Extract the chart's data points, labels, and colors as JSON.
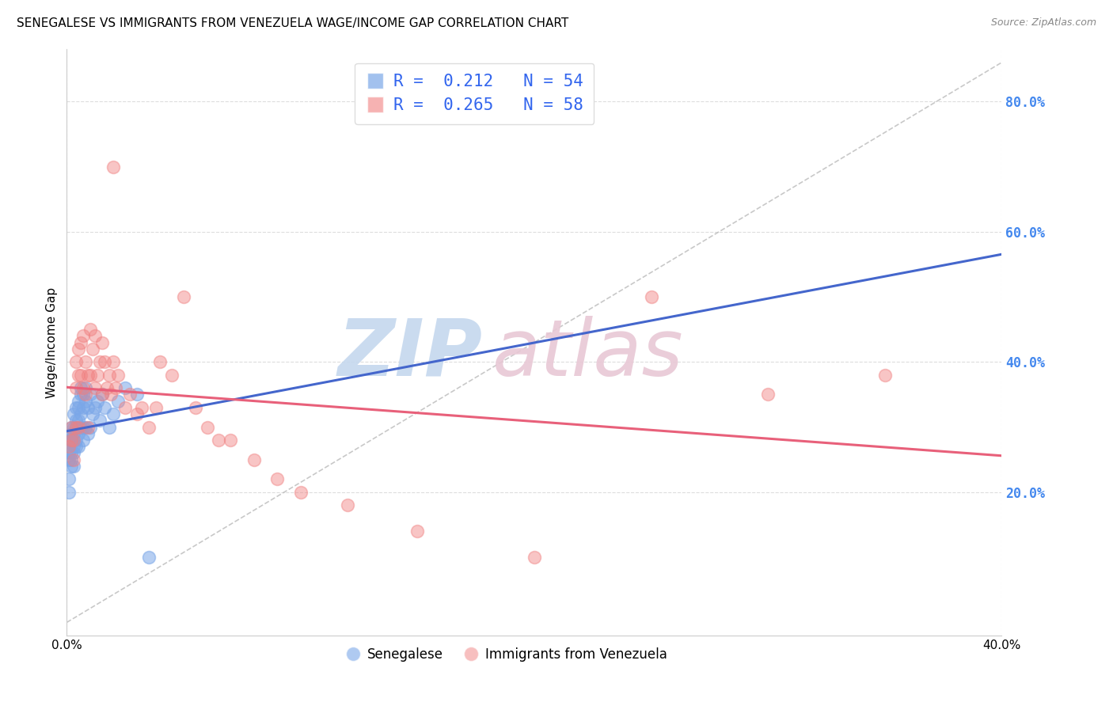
{
  "title": "SENEGALESE VS IMMIGRANTS FROM VENEZUELA WAGE/INCOME GAP CORRELATION CHART",
  "source": "Source: ZipAtlas.com",
  "ylabel": "Wage/Income Gap",
  "xlim": [
    0.0,
    0.4
  ],
  "ylim": [
    -0.02,
    0.88
  ],
  "xtick_positions": [
    0.0,
    0.4
  ],
  "xtick_labels": [
    "0.0%",
    "40.0%"
  ],
  "yticks_right": [
    0.2,
    0.4,
    0.6,
    0.8
  ],
  "ytick_labels_right": [
    "20.0%",
    "40.0%",
    "60.0%",
    "80.0%"
  ],
  "blue_color": "#7BA7E8",
  "pink_color": "#F08080",
  "blue_trend_color": "#4466CC",
  "pink_trend_color": "#E8607A",
  "diag_color": "#BBBBBB",
  "grid_color": "#DDDDDD",
  "blue_R": "0.212",
  "blue_N": "54",
  "pink_R": "0.265",
  "pink_N": "58",
  "title_fontsize": 11,
  "source_fontsize": 9,
  "tick_fontsize": 11,
  "ylabel_fontsize": 11,
  "legend_fontsize": 14,
  "watermark_zip_color": "#C5D8EE",
  "watermark_atlas_color": "#E8C8D5",
  "blue_scatter_x": [
    0.001,
    0.001,
    0.001,
    0.001,
    0.001,
    0.002,
    0.002,
    0.002,
    0.002,
    0.002,
    0.002,
    0.003,
    0.003,
    0.003,
    0.003,
    0.003,
    0.003,
    0.004,
    0.004,
    0.004,
    0.004,
    0.004,
    0.005,
    0.005,
    0.005,
    0.005,
    0.005,
    0.006,
    0.006,
    0.006,
    0.006,
    0.007,
    0.007,
    0.007,
    0.007,
    0.008,
    0.008,
    0.008,
    0.009,
    0.009,
    0.01,
    0.01,
    0.011,
    0.012,
    0.013,
    0.014,
    0.015,
    0.016,
    0.018,
    0.02,
    0.022,
    0.025,
    0.03,
    0.035
  ],
  "blue_scatter_y": [
    0.28,
    0.26,
    0.25,
    0.22,
    0.2,
    0.3,
    0.29,
    0.28,
    0.26,
    0.25,
    0.24,
    0.32,
    0.3,
    0.29,
    0.27,
    0.26,
    0.24,
    0.33,
    0.31,
    0.3,
    0.28,
    0.27,
    0.34,
    0.33,
    0.31,
    0.29,
    0.27,
    0.36,
    0.35,
    0.32,
    0.3,
    0.35,
    0.33,
    0.3,
    0.28,
    0.36,
    0.34,
    0.3,
    0.33,
    0.29,
    0.35,
    0.3,
    0.32,
    0.33,
    0.34,
    0.31,
    0.35,
    0.33,
    0.3,
    0.32,
    0.34,
    0.36,
    0.35,
    0.1
  ],
  "pink_scatter_x": [
    0.001,
    0.002,
    0.002,
    0.003,
    0.003,
    0.004,
    0.004,
    0.004,
    0.005,
    0.005,
    0.005,
    0.006,
    0.006,
    0.007,
    0.007,
    0.008,
    0.008,
    0.009,
    0.009,
    0.01,
    0.01,
    0.011,
    0.012,
    0.012,
    0.013,
    0.014,
    0.015,
    0.015,
    0.016,
    0.017,
    0.018,
    0.019,
    0.02,
    0.021,
    0.022,
    0.025,
    0.027,
    0.03,
    0.032,
    0.035,
    0.038,
    0.04,
    0.045,
    0.05,
    0.055,
    0.06,
    0.065,
    0.07,
    0.08,
    0.09,
    0.1,
    0.12,
    0.15,
    0.2,
    0.25,
    0.3,
    0.35,
    0.02
  ],
  "pink_scatter_y": [
    0.27,
    0.3,
    0.28,
    0.28,
    0.25,
    0.4,
    0.36,
    0.3,
    0.42,
    0.38,
    0.3,
    0.43,
    0.38,
    0.44,
    0.36,
    0.4,
    0.35,
    0.38,
    0.3,
    0.45,
    0.38,
    0.42,
    0.44,
    0.36,
    0.38,
    0.4,
    0.43,
    0.35,
    0.4,
    0.36,
    0.38,
    0.35,
    0.4,
    0.36,
    0.38,
    0.33,
    0.35,
    0.32,
    0.33,
    0.3,
    0.33,
    0.4,
    0.38,
    0.5,
    0.33,
    0.3,
    0.28,
    0.28,
    0.25,
    0.22,
    0.2,
    0.18,
    0.14,
    0.1,
    0.5,
    0.35,
    0.38,
    0.7
  ]
}
